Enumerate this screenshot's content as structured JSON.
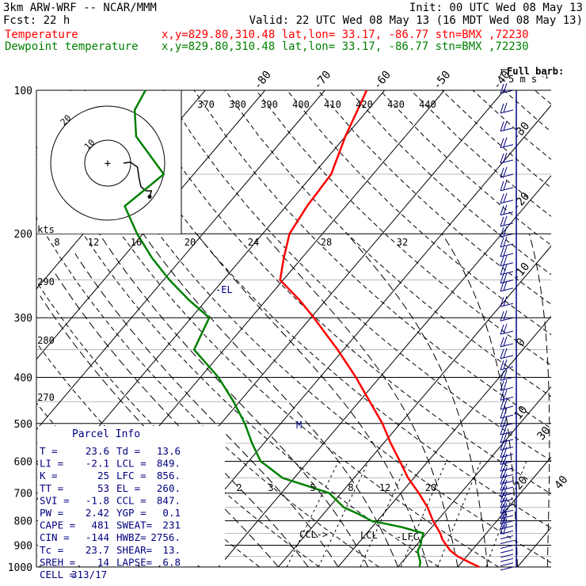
{
  "header": {
    "left_line1": "3km ARW-WRF -- NCAR/MMM",
    "left_line2": "Fcst:    22 h",
    "init": "Init: 00 UTC Wed 08 May 13",
    "valid": "Valid: 22 UTC Wed 08 May 13 (16 MDT Wed 08 May 13)",
    "temp_label": "Temperature",
    "dew_label": "Dewpoint temperature",
    "location": "x,y=829.80,310.48   lat,lon= 33.17, -86.77   stn=BMX ,72230",
    "barb_legend_1": "Full barb:",
    "barb_legend_2": "5 m s",
    "barb_legend_3": "-1",
    "colors": {
      "temperature": "#ff0000",
      "dewpoint": "#008000",
      "header": "#000000",
      "parcel_info": "#000080",
      "wind_barbs": "#000080",
      "hodograph": "#000000"
    }
  },
  "chart_data": {
    "type": "line",
    "title": "",
    "pressure_labels": [
      "100",
      "200",
      "300",
      "400",
      "500",
      "600",
      "700",
      "800",
      "900",
      "1000"
    ],
    "isotherm_labels": [
      "-80",
      "-70",
      "-60",
      "-50",
      "-40",
      "-30",
      "-20",
      "-10",
      "0",
      "10",
      "20",
      "30",
      "40"
    ],
    "theta_e_labels": [
      "370",
      "380",
      "390",
      "400",
      "410",
      "420",
      "430",
      "440"
    ],
    "mixing_ratio_labels": [
      "2",
      "3",
      "5",
      "8",
      "12",
      "20"
    ],
    "dry_adiabat_labels": [
      "290",
      "280",
      "270"
    ],
    "hodograph_speed_labels": [
      "8",
      "12",
      "16",
      "20",
      "24",
      "28",
      "32"
    ],
    "hodograph_unit": "kts",
    "hodograph_ring_labels": [
      "10",
      "20"
    ],
    "markers": {
      "el": "-EL",
      "m": "M",
      "lcl": "LCL",
      "lfc": "-LFC",
      "ccl": "CCL->"
    },
    "series": [
      {
        "name": "Temperature",
        "color": "#ff0000",
        "points": [
          [
            1000,
            23.6
          ],
          [
            975,
            21
          ],
          [
            950,
            18.5
          ],
          [
            925,
            16.5
          ],
          [
            900,
            15.0
          ],
          [
            875,
            13.5
          ],
          [
            850,
            12.3
          ],
          [
            800,
            9.3
          ],
          [
            750,
            6.5
          ],
          [
            700,
            3.0
          ],
          [
            650,
            -1.0
          ],
          [
            600,
            -4.7
          ],
          [
            550,
            -8.8
          ],
          [
            500,
            -13.0
          ],
          [
            450,
            -18.2
          ],
          [
            400,
            -24.0
          ],
          [
            350,
            -31.0
          ],
          [
            300,
            -39.5
          ],
          [
            275,
            -44.5
          ],
          [
            250,
            -50.5
          ],
          [
            225,
            -53.0
          ],
          [
            200,
            -55.5
          ],
          [
            175,
            -56.5
          ],
          [
            150,
            -57.0
          ],
          [
            125,
            -60.0
          ],
          [
            100,
            -63.0
          ]
        ]
      },
      {
        "name": "Dewpoint temperature",
        "color": "#008000",
        "points": [
          [
            1000,
            13.6
          ],
          [
            975,
            13.0
          ],
          [
            950,
            12.0
          ],
          [
            925,
            11.0
          ],
          [
            900,
            10.7
          ],
          [
            875,
            10.0
          ],
          [
            850,
            9.5
          ],
          [
            825,
            5.0
          ],
          [
            800,
            -1.0
          ],
          [
            775,
            -4.0
          ],
          [
            750,
            -7.5
          ],
          [
            700,
            -12.0
          ],
          [
            650,
            -22.0
          ],
          [
            600,
            -28.0
          ],
          [
            550,
            -32.0
          ],
          [
            500,
            -36.0
          ],
          [
            450,
            -41.0
          ],
          [
            400,
            -47.0
          ],
          [
            350,
            -55.0
          ],
          [
            300,
            -57.0
          ],
          [
            275,
            -63.0
          ],
          [
            250,
            -69.0
          ],
          [
            225,
            -75.0
          ],
          [
            200,
            -81.0
          ],
          [
            175,
            -87.0
          ],
          [
            150,
            -85.0
          ],
          [
            125,
            -95.0
          ],
          [
            110,
            -99.0
          ],
          [
            100,
            -100.0
          ]
        ]
      }
    ],
    "hodograph_trace": [
      [
        0,
        0
      ],
      [
        4,
        0.5
      ],
      [
        8,
        -2
      ],
      [
        9,
        -8
      ],
      [
        10,
        -12
      ],
      [
        13,
        -14
      ],
      [
        16,
        -14
      ],
      [
        15,
        -17
      ]
    ],
    "wind_profile_pressures": [
      100,
      110,
      120,
      130,
      140,
      150,
      160,
      170,
      180,
      190,
      200,
      210,
      220,
      230,
      240,
      250,
      260,
      280,
      300,
      320,
      340,
      360,
      380,
      400,
      420,
      440,
      460,
      480,
      500,
      520,
      540,
      560,
      580,
      600,
      620,
      640,
      660,
      680,
      700,
      720,
      740,
      760,
      780,
      800,
      820,
      840,
      860,
      880,
      900,
      920,
      940,
      960,
      980,
      1000
    ]
  },
  "parcel_info": {
    "title": "Parcel Info",
    "rows": [
      [
        "T  =",
        "23.6",
        "Td =",
        "13.6"
      ],
      [
        "LI =",
        "-2.1",
        "LCL =",
        "849."
      ],
      [
        "K  =",
        "25",
        "LFC =",
        "856."
      ],
      [
        "TT =",
        "53",
        "EL =",
        "260."
      ],
      [
        "SVI =",
        "-1.8",
        "CCL =",
        "847."
      ],
      [
        "PW =",
        "2.42",
        "YGP =",
        "0.1"
      ],
      [
        "CAPE =",
        "481",
        "SWEAT=",
        "231"
      ],
      [
        "CIN =",
        "-144",
        "HWBZ=",
        "2756."
      ],
      [
        "Tc =",
        "23.7",
        "SHEAR=",
        "13."
      ],
      [
        "SREH =",
        "14",
        "LAPSE=",
        "6.8"
      ],
      [
        "CELL =",
        "313/17",
        "",
        ""
      ]
    ]
  }
}
